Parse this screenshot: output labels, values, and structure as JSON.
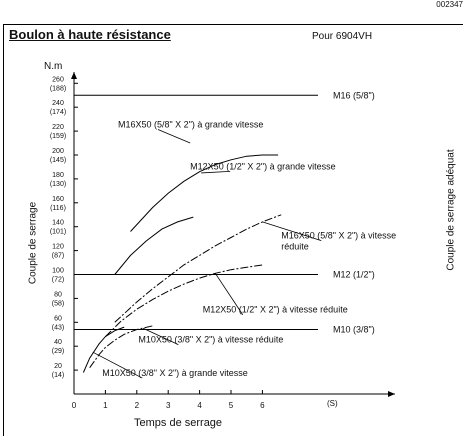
{
  "page_id": "002347",
  "heading": "Boulon à haute résistance",
  "model": "Pour 6904VH",
  "right_title": "Couple de serrage adéquat",
  "chart_data": {
    "type": "line",
    "title": "",
    "xlabel": "Temps de serrage",
    "x_unit": "(S)",
    "ylabel": "Couple de serrage",
    "y_unit": "N.m",
    "xlim": [
      0,
      7.5
    ],
    "ylim": [
      0,
      270
    ],
    "x_ticks": [
      0,
      1,
      2,
      3,
      4,
      5,
      6
    ],
    "y_ticks": [
      {
        "value": 20,
        "main": "20",
        "alt": "(14)"
      },
      {
        "value": 40,
        "main": "40",
        "alt": "(29)"
      },
      {
        "value": 60,
        "main": "60",
        "alt": "(43)"
      },
      {
        "value": 80,
        "main": "80",
        "alt": "(58)"
      },
      {
        "value": 100,
        "main": "100",
        "alt": "(72)"
      },
      {
        "value": 120,
        "main": "120",
        "alt": "(87)"
      },
      {
        "value": 140,
        "main": "140",
        "alt": "(101)"
      },
      {
        "value": 160,
        "main": "160",
        "alt": "(116)"
      },
      {
        "value": 180,
        "main": "180",
        "alt": "(130)"
      },
      {
        "value": 200,
        "main": "200",
        "alt": "(145)"
      },
      {
        "value": 220,
        "main": "220",
        "alt": "(159)"
      },
      {
        "value": 240,
        "main": "240",
        "alt": "(174)"
      },
      {
        "value": 260,
        "main": "260",
        "alt": "(188)"
      }
    ],
    "reference_lines": [
      {
        "name": "M16 (5/8\")",
        "value": 250
      },
      {
        "name": "M12 (1/2\")",
        "value": 100
      },
      {
        "name": "M10 (3/8\")",
        "value": 54
      }
    ],
    "series": [
      {
        "name": "M16X50 (5/8\" X 2\") à grande vitesse",
        "style": "solid",
        "x": [
          1.8,
          2.5,
          3.0,
          3.5,
          4.0,
          4.5,
          5.0,
          5.5,
          6.0,
          6.5
        ],
        "y": [
          136,
          156,
          168,
          178,
          186,
          192,
          196,
          199,
          200,
          200
        ]
      },
      {
        "name": "M12X50 (1/2\" X 2\") à grande vitesse",
        "style": "solid",
        "x": [
          1.3,
          1.8,
          2.3,
          2.8,
          3.3,
          3.8
        ],
        "y": [
          100,
          116,
          128,
          138,
          144,
          148
        ]
      },
      {
        "name": "M16X50 (5/8\" X 2\") à vitesse réduite",
        "style": "dashdot",
        "x": [
          1.3,
          2.0,
          2.5,
          3.0,
          3.5,
          4.0,
          4.5,
          5.0,
          5.5,
          6.0,
          6.6
        ],
        "y": [
          60,
          77,
          88,
          98,
          108,
          116,
          124,
          131,
          138,
          144,
          150
        ]
      },
      {
        "name": "M12X50 (1/2\" X 2\") à vitesse réduite",
        "style": "dashdot",
        "x": [
          1.0,
          1.5,
          2.0,
          2.5,
          3.0,
          3.5,
          4.0,
          4.5,
          5.0,
          5.5,
          6.0
        ],
        "y": [
          48,
          61,
          71,
          79,
          86,
          92,
          97,
          101,
          104,
          106,
          108
        ]
      },
      {
        "name": "M10X50 (3/8\" X 2\") à vitesse réduite",
        "style": "dashdot",
        "x": [
          0.5,
          0.8,
          1.0,
          1.3,
          1.6,
          2.0,
          2.5
        ],
        "y": [
          22,
          33,
          39,
          45,
          50,
          54,
          57
        ]
      },
      {
        "name": "M10X50 (3/8\" X 2\") à grande vitesse",
        "style": "solid",
        "x": [
          0.3,
          0.5,
          0.8,
          1.0,
          1.3,
          1.6
        ],
        "y": [
          18,
          30,
          42,
          48,
          53,
          56
        ]
      }
    ],
    "series_labels": [
      {
        "text": "M16X50 (5/8\" X 2\") à grande vitesse",
        "lines": [
          "M16X50 (5/8\" X 2\") à grande vitesse"
        ],
        "anchor": [
          3.7,
          210
        ],
        "label": [
          1.4,
          223
        ]
      },
      {
        "text": "M12X50 (1/2\" X 2\") à grande vitesse",
        "lines": [
          "M12X50 (1/2\" X 2\") à grande vitesse"
        ],
        "anchor": [
          4.05,
          185
        ],
        "label": [
          3.7,
          188
        ]
      },
      {
        "text": "M16X50 (5/8\" X 2\") à vitesse réduite",
        "lines": [
          "M16X50 (5/8\" X 2\") à vitesse",
          "réduite"
        ],
        "anchor": [
          6.0,
          144
        ],
        "label": [
          6.6,
          130
        ]
      },
      {
        "text": "M12X50 (1/2\" X 2\") à vitesse réduite",
        "lines": [
          "M12X50 (1/2\" X 2\") à vitesse réduite"
        ],
        "anchor": [
          4.5,
          101
        ],
        "label": [
          4.1,
          68
        ]
      },
      {
        "text": "M10X50 (3/8\" X 2\") à vitesse réduite",
        "lines": [
          "M10X50 (3/8\" X 2\") à vitesse réduite"
        ],
        "anchor": [
          2.2,
          55
        ],
        "label": [
          2.05,
          43
        ]
      },
      {
        "text": "M10X50 (3/8\" X 2\") à grande vitesse",
        "lines": [
          "M10X50 (3/8\" X 2\") à grande vitesse"
        ],
        "anchor": [
          0.6,
          35
        ],
        "label": [
          0.9,
          15
        ]
      }
    ]
  }
}
